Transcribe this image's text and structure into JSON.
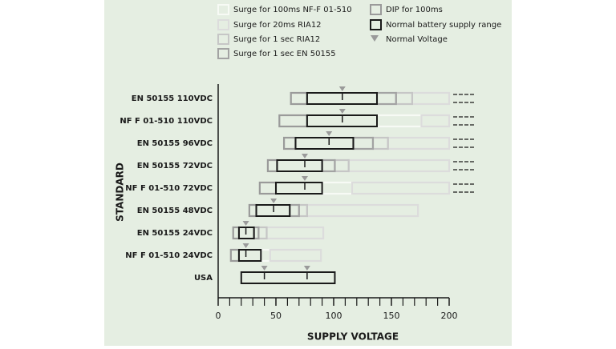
{
  "chart_data": {
    "type": "range",
    "x_label": "SUPPLY VOLTAGE",
    "y_label": "STANDARD",
    "categories": [
      "EN 50155 110VDC",
      "NF F 01-510 110VDC",
      "EN 50155 96VDC",
      "EN 50155 72VDC",
      "NF F 01-510 72VDC",
      "EN 50155 48VDC",
      "EN 50155 24VDC",
      "NF F 01-510 24VDC",
      "USA"
    ],
    "xlim": [
      0,
      200
    ],
    "xticks": [
      0,
      50,
      100,
      150,
      200
    ],
    "xminor": [
      10,
      20,
      30,
      40,
      60,
      70,
      80,
      90,
      110,
      120,
      130,
      140,
      160,
      170,
      180,
      190
    ],
    "continues": [
      true,
      true,
      true,
      true,
      true,
      false,
      false,
      false,
      false
    ],
    "series": [
      {
        "name": "Surge for 100ms NF-F 01-510",
        "color": "#f7faf5",
        "values": [
          null,
          [
            137.5,
            176
          ],
          null,
          null,
          [
            90,
            116
          ],
          null,
          null,
          [
            37,
            45
          ],
          null
        ]
      },
      {
        "name": "Surge for 20ms RIA12",
        "color": "#dcdcdc",
        "values": [
          [
            168,
            200
          ],
          [
            176,
            200
          ],
          [
            147,
            200
          ],
          [
            113,
            200
          ],
          [
            116,
            200
          ],
          [
            77,
            173
          ],
          [
            42,
            91
          ],
          [
            45,
            89
          ],
          null
        ]
      },
      {
        "name": "Surge for 1 sec RIA12",
        "color": "#c6c6c6",
        "values": [
          [
            154,
            168
          ],
          null,
          [
            134,
            147
          ],
          [
            101,
            113
          ],
          null,
          [
            70,
            77
          ],
          [
            35,
            42
          ],
          null,
          null
        ]
      },
      {
        "name": "Surge for 1 sec EN 50155",
        "color": "#a3a3a3",
        "values": [
          [
            137.5,
            154
          ],
          null,
          [
            117,
            134
          ],
          [
            90,
            101
          ],
          null,
          [
            62,
            70
          ],
          [
            31,
            35
          ],
          null,
          null
        ]
      },
      {
        "name": "DIP for 100ms",
        "color": "#9a9a9a",
        "values": [
          [
            63,
            77
          ],
          [
            53,
            77
          ],
          [
            57,
            67
          ],
          [
            43,
            51
          ],
          [
            36,
            50
          ],
          [
            27,
            33
          ],
          [
            13,
            18
          ],
          [
            11,
            18
          ],
          null
        ]
      },
      {
        "name": "Normal battery supply range",
        "color": "#1a1a1a",
        "values": [
          [
            77,
            137.5
          ],
          [
            77,
            137.5
          ],
          [
            67,
            117
          ],
          [
            51,
            90
          ],
          [
            50,
            90
          ],
          [
            33,
            62
          ],
          [
            18,
            31
          ],
          [
            18,
            37
          ],
          [
            20,
            101
          ]
        ]
      }
    ],
    "nominal": {
      "name": "Normal Voltage",
      "color": "#9a9a9a",
      "values": [
        [
          107.5
        ],
        [
          107.5
        ],
        [
          96
        ],
        [
          75
        ],
        [
          75
        ],
        [
          48
        ],
        [
          24
        ],
        [
          24
        ],
        [
          40,
          77
        ]
      ]
    }
  }
}
